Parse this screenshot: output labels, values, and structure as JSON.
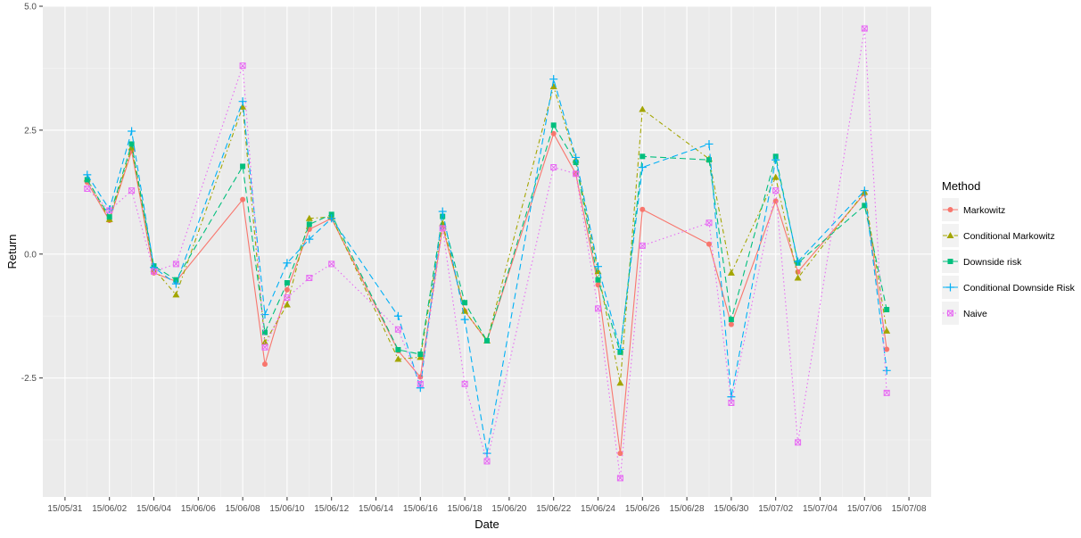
{
  "chart_data": {
    "type": "line",
    "title": "",
    "xlabel": "Date",
    "ylabel": "Return",
    "x_tick_labels": [
      "15/05/31",
      "15/06/02",
      "15/06/04",
      "15/06/06",
      "15/06/08",
      "15/06/10",
      "15/06/12",
      "15/06/14",
      "15/06/16",
      "15/06/18",
      "15/06/20",
      "15/06/22",
      "15/06/24",
      "15/06/26",
      "15/06/28",
      "15/06/30",
      "15/07/02",
      "15/07/04",
      "15/07/06",
      "15/07/08"
    ],
    "y_tick_labels": [
      "-2.5",
      "0.0",
      "2.5",
      "5.0"
    ],
    "y_ticks": [
      -2.5,
      0.0,
      2.5,
      5.0
    ],
    "xlim": [
      "2015-05-30",
      "2015-07-09"
    ],
    "ylim": [
      -4.9,
      5.0
    ],
    "grid": true,
    "legend": {
      "title": "Method",
      "placement": "right"
    },
    "x": [
      "2015-06-01",
      "2015-06-02",
      "2015-06-03",
      "2015-06-04",
      "2015-06-05",
      "2015-06-08",
      "2015-06-09",
      "2015-06-10",
      "2015-06-11",
      "2015-06-12",
      "2015-06-15",
      "2015-06-16",
      "2015-06-17",
      "2015-06-18",
      "2015-06-19",
      "2015-06-22",
      "2015-06-23",
      "2015-06-24",
      "2015-06-25",
      "2015-06-26",
      "2015-06-29",
      "2015-06-30",
      "2015-07-02",
      "2015-07-03",
      "2015-07-06",
      "2015-07-07"
    ],
    "series": [
      {
        "name": "Markowitz",
        "color": "#F8766D",
        "marker": "circle",
        "dash": "solid",
        "values": [
          1.45,
          0.68,
          2.08,
          -0.38,
          -0.55,
          1.1,
          -2.22,
          -0.72,
          0.5,
          0.72,
          -1.95,
          -2.48,
          0.55,
          -1.15,
          -1.75,
          2.43,
          1.62,
          -0.62,
          -4.02,
          0.9,
          0.2,
          -1.42,
          1.07,
          -0.36,
          1.22,
          -1.92
        ]
      },
      {
        "name": "Conditional Markowitz",
        "color": "#A3A500",
        "marker": "triangle",
        "dash": "dash-dot",
        "values": [
          1.52,
          0.7,
          2.15,
          -0.3,
          -0.82,
          2.97,
          -1.78,
          -1.02,
          0.72,
          0.75,
          -2.12,
          -2.08,
          0.62,
          -1.15,
          -1.75,
          3.38,
          1.9,
          -0.35,
          -2.6,
          2.92,
          1.92,
          -0.38,
          1.55,
          -0.48,
          1.25,
          -1.55
        ]
      },
      {
        "name": "Downside risk",
        "color": "#00BF7D",
        "marker": "square",
        "dash": "long-dash",
        "values": [
          1.5,
          0.75,
          2.22,
          -0.24,
          -0.52,
          1.77,
          -1.58,
          -0.58,
          0.6,
          0.8,
          -1.93,
          -2.02,
          0.76,
          -0.98,
          -1.75,
          2.6,
          1.85,
          -0.52,
          -1.98,
          1.97,
          1.9,
          -1.32,
          1.97,
          -0.18,
          0.98,
          -1.12
        ]
      },
      {
        "name": "Conditional Downside Risk",
        "color": "#00B0F6",
        "marker": "plus",
        "dash": "long-dash",
        "values": [
          1.6,
          0.9,
          2.48,
          -0.27,
          -0.6,
          3.08,
          -1.22,
          -0.18,
          0.3,
          0.72,
          -1.25,
          -2.7,
          0.86,
          -1.32,
          -4.02,
          3.53,
          1.95,
          -0.25,
          -1.92,
          1.75,
          2.22,
          -2.88,
          1.9,
          -0.15,
          1.28,
          -2.35
        ]
      },
      {
        "name": "Naive",
        "color": "#E76BF3",
        "marker": "square-cross",
        "dash": "dotted",
        "values": [
          1.32,
          0.88,
          1.28,
          -0.35,
          -0.2,
          3.8,
          -1.88,
          -0.88,
          -0.48,
          -0.2,
          -1.52,
          -2.62,
          0.52,
          -2.62,
          -4.18,
          1.75,
          1.62,
          -1.1,
          -4.52,
          0.17,
          0.63,
          -3.0,
          1.28,
          -3.8,
          4.55,
          -2.8
        ]
      }
    ]
  }
}
